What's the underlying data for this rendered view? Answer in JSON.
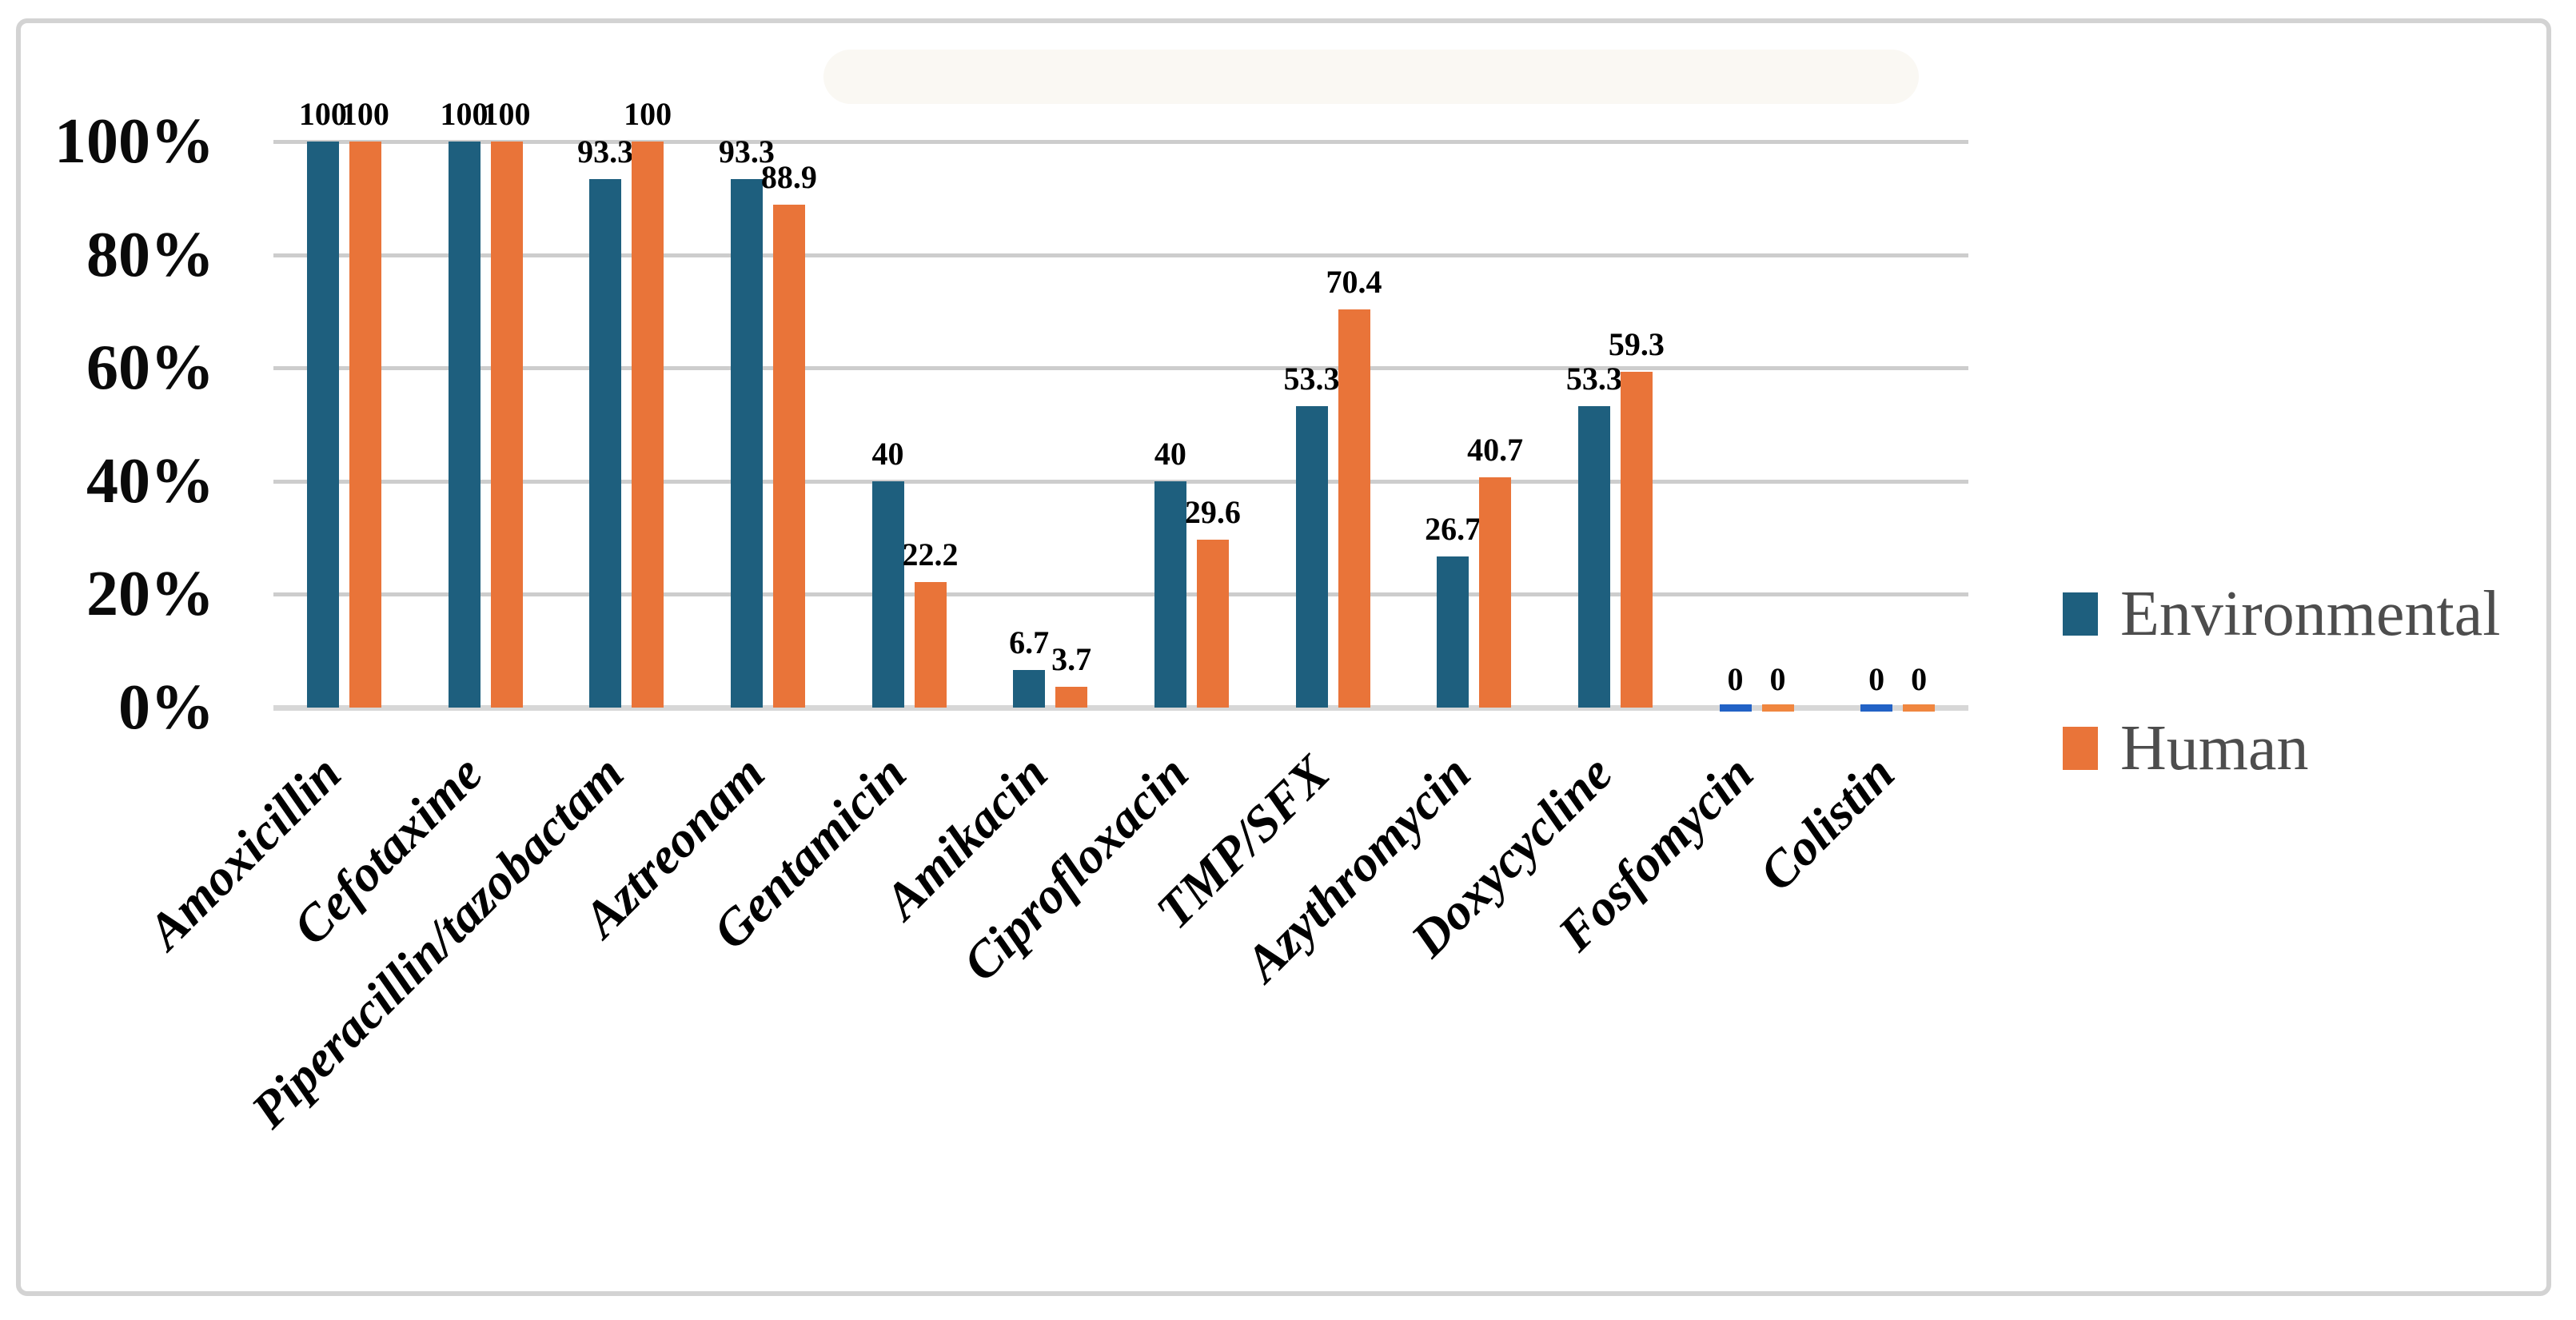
{
  "figure": {
    "background": "#ffffff",
    "border_color": "#d3d3d3",
    "title": ""
  },
  "chart_data": {
    "type": "bar",
    "title": "",
    "xlabel": "",
    "ylabel": "",
    "grid": "horizontal",
    "legend_position": "right",
    "categories": [
      "Amoxicillin",
      "Cefotaxime",
      "Piperacillin/tazobactam",
      "Aztreonam",
      "Gentamicin",
      "Amikacin",
      "Ciprofloxacin",
      "TMP/SFX",
      "Azythromycin",
      "Doxycycline",
      "Fosfomycin",
      "Colistin"
    ],
    "series": [
      {
        "name": "Environmental",
        "color": "#1E5F7E",
        "zero_dash_color": "#2262C6",
        "values": [
          100,
          100,
          93.3,
          93.3,
          40,
          6.7,
          40,
          53.3,
          26.7,
          53.3,
          0,
          0
        ],
        "labels": [
          "100",
          "100",
          "93.3",
          "93.3",
          "40",
          "6.7",
          "40",
          "53.3",
          "26.7",
          "53.3",
          "0",
          "0"
        ]
      },
      {
        "name": "Human",
        "color": "#E97439",
        "zero_dash_color": "#F0863F",
        "values": [
          100,
          100,
          100,
          88.9,
          22.2,
          3.7,
          29.6,
          70.4,
          40.7,
          59.3,
          0,
          0
        ],
        "labels": [
          "100",
          "100",
          "100",
          "88.9",
          "22.2",
          "3.7",
          "29.6",
          "70.4",
          "40.7",
          "59.3",
          "0",
          "0"
        ]
      }
    ],
    "y_axis": {
      "min": 0,
      "max": 100,
      "tick_step": 20,
      "tick_labels": [
        "0%",
        "20%",
        "40%",
        "60%",
        "80%",
        "100%"
      ]
    },
    "colors": {
      "gridline": "#cdcdcd",
      "axis_line": "#d7d7d7",
      "tick_text": "#0a0a0a",
      "data_label_text": "#000000",
      "legend_text": "#4d4d4d"
    }
  }
}
